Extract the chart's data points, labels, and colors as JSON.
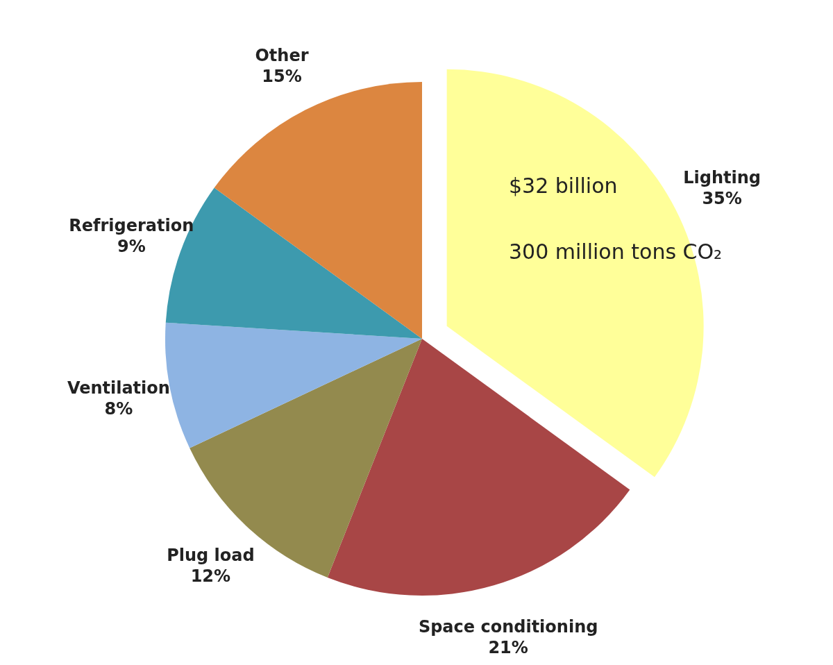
{
  "chart_data": {
    "type": "pie",
    "categories": [
      "Lighting",
      "Space conditioning",
      "Plug load",
      "Ventilation",
      "Refrigeration",
      "Other"
    ],
    "values": [
      35,
      21,
      12,
      8,
      9,
      15
    ],
    "value_labels": [
      "35%",
      "21%",
      "12%",
      "8%",
      "9%",
      "15%"
    ],
    "colors": [
      "#ffff99",
      "#a84646",
      "#938a4e",
      "#8eb4e3",
      "#3d9aae",
      "#dc8640"
    ],
    "annotations": [
      "$32 billion",
      "300 million tons CO₂"
    ]
  }
}
